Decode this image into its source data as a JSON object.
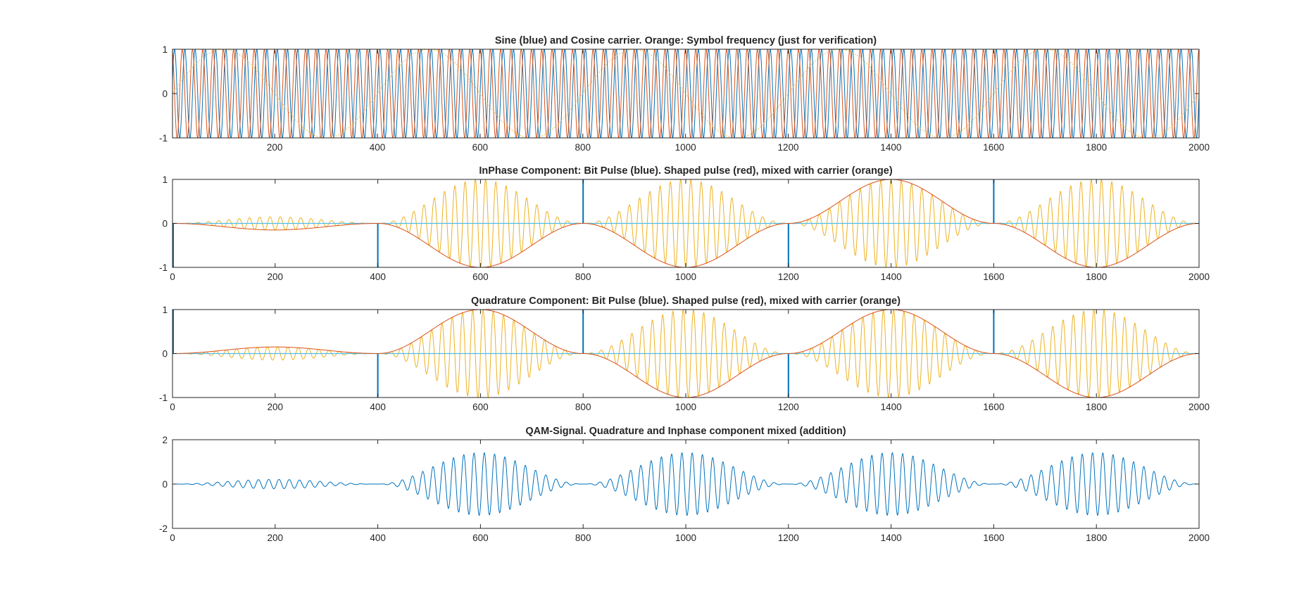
{
  "chart_data": [
    {
      "type": "line",
      "title": "Sine (blue) and Cosine carrier. Orange: Symbol frequency (just for verification)",
      "xlim": [
        1,
        2000
      ],
      "ylim": [
        -1,
        1
      ],
      "xticks": [
        200,
        400,
        600,
        800,
        1000,
        1200,
        1400,
        1600,
        1800,
        2000
      ],
      "yticks": [
        -1,
        0,
        1
      ],
      "xticklabels": [
        "200",
        "400",
        "600",
        "800",
        "1000",
        "1200",
        "1400",
        "1600",
        "1800",
        "2000"
      ],
      "yticklabels": [
        "-1",
        "0",
        "1"
      ],
      "colors": {
        "blue": "#0072BD",
        "red": "#D95319",
        "orange": "#EDB120"
      },
      "series": [
        {
          "color": "#0072BD",
          "kind": "sin",
          "amplitude": 1,
          "period": 20
        },
        {
          "color": "#D95319",
          "kind": "cos",
          "amplitude": 1,
          "period": 20
        },
        {
          "color": "#EDB120",
          "kind": "sin",
          "amplitude": 1,
          "period": 400,
          "style": "dotted"
        }
      ]
    },
    {
      "type": "line",
      "title": "InPhase Component: Bit Pulse (blue). Shaped pulse (red), mixed with carrier (orange)",
      "xlim": [
        0,
        2000
      ],
      "ylim": [
        -1,
        1
      ],
      "xticks": [
        0,
        200,
        400,
        600,
        800,
        1000,
        1200,
        1400,
        1600,
        1800,
        2000
      ],
      "yticks": [
        -1,
        0,
        1
      ],
      "xticklabels": [
        "0",
        "200",
        "400",
        "600",
        "800",
        "1000",
        "1200",
        "1400",
        "1600",
        "1800",
        "2000"
      ],
      "yticklabels": [
        "-1",
        "0",
        "1"
      ],
      "pulse_times": [
        0,
        400,
        800,
        1200,
        1600
      ],
      "pulse_values": [
        -1,
        -1,
        1,
        -1,
        1
      ],
      "segments": [
        {
          "start": 0,
          "end": 400,
          "sign": -1,
          "amplitude": 0.15
        },
        {
          "start": 400,
          "end": 800,
          "sign": -1,
          "amplitude": 1
        },
        {
          "start": 800,
          "end": 1200,
          "sign": -1,
          "amplitude": 1
        },
        {
          "start": 1200,
          "end": 1600,
          "sign": 1,
          "amplitude": 1
        },
        {
          "start": 1600,
          "end": 2000,
          "sign": -1,
          "amplitude": 1
        }
      ],
      "carrier_period": 20,
      "carrier": "cos"
    },
    {
      "type": "line",
      "title": "Quadrature Component: Bit Pulse (blue). Shaped pulse (red), mixed with carrier (orange)",
      "xlim": [
        0,
        2000
      ],
      "ylim": [
        -1,
        1
      ],
      "xticks": [
        0,
        200,
        400,
        600,
        800,
        1000,
        1200,
        1400,
        1600,
        1800,
        2000
      ],
      "yticks": [
        -1,
        0,
        1
      ],
      "xticklabels": [
        "0",
        "200",
        "400",
        "600",
        "800",
        "1000",
        "1200",
        "1400",
        "1600",
        "1800",
        "2000"
      ],
      "yticklabels": [
        "-1",
        "0",
        "1"
      ],
      "pulse_times": [
        0,
        400,
        800,
        1200,
        1600
      ],
      "pulse_values": [
        1,
        -1,
        1,
        -1,
        1
      ],
      "segments": [
        {
          "start": 0,
          "end": 400,
          "sign": 1,
          "amplitude": 0.15
        },
        {
          "start": 400,
          "end": 800,
          "sign": 1,
          "amplitude": 1
        },
        {
          "start": 800,
          "end": 1200,
          "sign": -1,
          "amplitude": 1
        },
        {
          "start": 1200,
          "end": 1600,
          "sign": 1,
          "amplitude": 1
        },
        {
          "start": 1600,
          "end": 2000,
          "sign": -1,
          "amplitude": 1
        }
      ],
      "carrier_period": 20,
      "carrier": "sin"
    },
    {
      "type": "line",
      "title": "QAM-Signal. Quadrature and Inphase component mixed (addition)",
      "xlim": [
        0,
        2000
      ],
      "ylim": [
        -2,
        2
      ],
      "xticks": [
        0,
        200,
        400,
        600,
        800,
        1000,
        1200,
        1400,
        1600,
        1800,
        2000
      ],
      "yticks": [
        -2,
        0,
        2
      ],
      "xticklabels": [
        "0",
        "200",
        "400",
        "600",
        "800",
        "1000",
        "1200",
        "1400",
        "1600",
        "1800",
        "2000"
      ],
      "yticklabels": [
        "-2",
        "0",
        "2"
      ],
      "series": [
        {
          "color": "#0072BD",
          "kind": "sum of inphase and quadrature components"
        }
      ]
    }
  ]
}
